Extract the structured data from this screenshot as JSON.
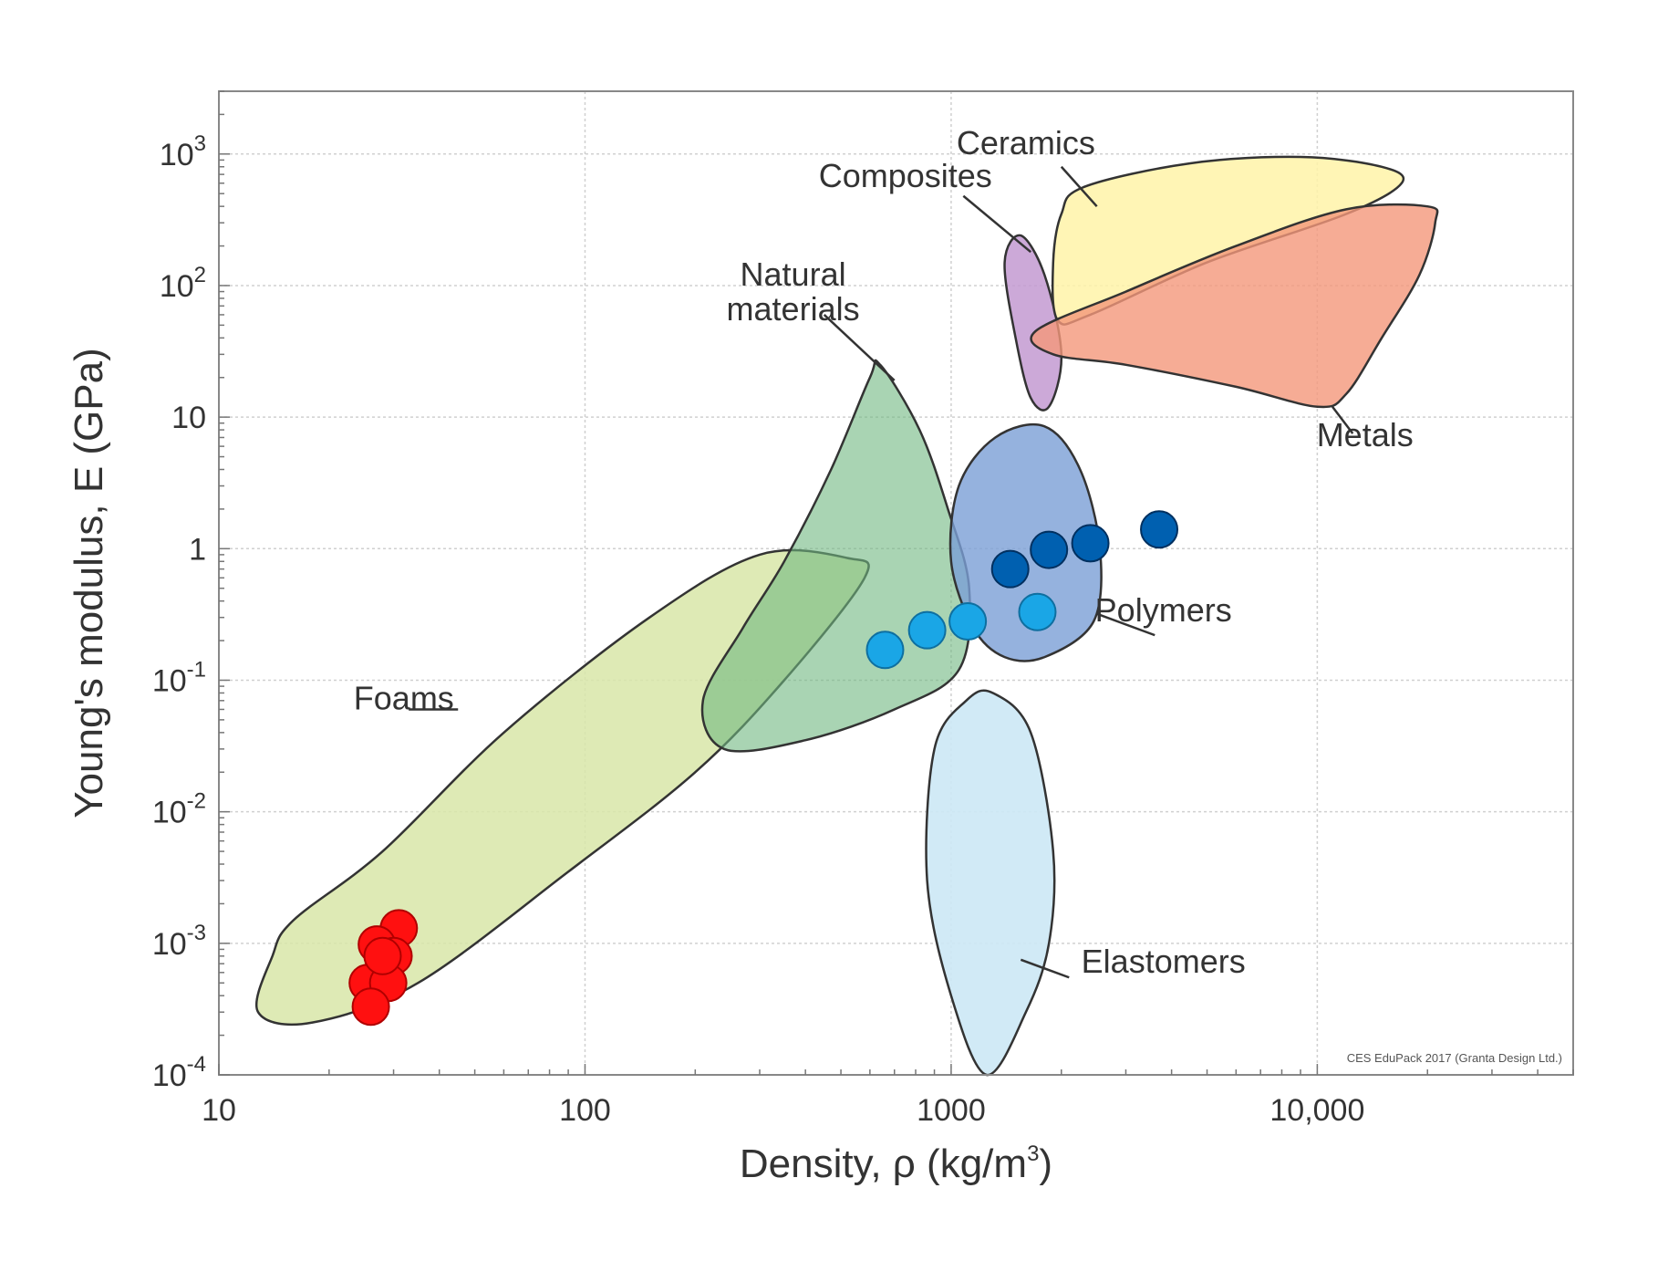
{
  "chart_data": {
    "type": "scatter",
    "title": "",
    "credit": "CES EduPack 2017 (Granta Design Ltd.)",
    "xlabel": {
      "base": "Density, ρ  (kg/m",
      "exp": "3",
      "tail": ")"
    },
    "ylabel": "Young's modulus, E (GPa)",
    "x_scale": "log",
    "y_scale": "log",
    "xlim": [
      10,
      50000
    ],
    "ylim": [
      0.0001,
      3000
    ],
    "grid": true,
    "x_ticks": [
      {
        "value": 10,
        "label": "10"
      },
      {
        "value": 100,
        "label": "100"
      },
      {
        "value": 1000,
        "label": "1000"
      },
      {
        "value": 10000,
        "label": "10,000"
      }
    ],
    "y_ticks": [
      {
        "value": 0.0001,
        "label": "10",
        "exp": "-4"
      },
      {
        "value": 0.001,
        "label": "10",
        "exp": "-3"
      },
      {
        "value": 0.01,
        "label": "10",
        "exp": "-2"
      },
      {
        "value": 0.1,
        "label": "10",
        "exp": "-1"
      },
      {
        "value": 1,
        "label": "1",
        "exp": ""
      },
      {
        "value": 10,
        "label": "10",
        "exp": ""
      },
      {
        "value": 100,
        "label": "10",
        "exp": "2"
      },
      {
        "value": 1000,
        "label": "10",
        "exp": "3"
      }
    ],
    "families": [
      {
        "key": "foams",
        "label": "Foams",
        "fill": "#d8e6a8",
        "opacity": 0.85,
        "outline": [
          [
            14,
            0.0008
          ],
          [
            12.8,
            0.0003
          ],
          [
            18,
            0.00025
          ],
          [
            35,
            0.0005
          ],
          [
            90,
            0.0035
          ],
          [
            200,
            0.02
          ],
          [
            350,
            0.1
          ],
          [
            580,
            0.6
          ],
          [
            520,
            0.85
          ],
          [
            300,
            0.9
          ],
          [
            150,
            0.3
          ],
          [
            60,
            0.04
          ],
          [
            28,
            0.005
          ],
          [
            16,
            0.0015
          ]
        ],
        "label_at": [
          32,
          0.06
        ],
        "leader": [
          [
            33,
            0.06
          ],
          [
            45,
            0.06
          ]
        ]
      },
      {
        "key": "natural",
        "label": "Natural materials",
        "fill": "#6fb880",
        "opacity": 0.6,
        "outline": [
          [
            640,
            25
          ],
          [
            820,
            8
          ],
          [
            980,
            2
          ],
          [
            1120,
            0.5
          ],
          [
            1050,
            0.12
          ],
          [
            700,
            0.06
          ],
          [
            400,
            0.035
          ],
          [
            240,
            0.03
          ],
          [
            210,
            0.07
          ],
          [
            270,
            0.25
          ],
          [
            350,
            0.8
          ],
          [
            470,
            4
          ],
          [
            600,
            20
          ]
        ],
        "label_at": [
          370,
          100
        ],
        "leader": [
          [
            450,
            60
          ],
          [
            700,
            19
          ]
        ]
      },
      {
        "key": "polymers",
        "label": "Polymers",
        "fill": "#7b9fd6",
        "opacity": 0.8,
        "outline": [
          [
            1320,
            7
          ],
          [
            1800,
            8.5
          ],
          [
            2250,
            4
          ],
          [
            2550,
            1
          ],
          [
            2450,
            0.28
          ],
          [
            1800,
            0.15
          ],
          [
            1400,
            0.15
          ],
          [
            1150,
            0.25
          ],
          [
            1000,
            0.8
          ],
          [
            1050,
            3
          ]
        ],
        "label_at": [
          3800,
          0.28
        ],
        "leader": [
          [
            2500,
            0.32
          ],
          [
            3600,
            0.22
          ]
        ]
      },
      {
        "key": "elastomers",
        "label": "Elastomers",
        "fill": "#cce8f5",
        "opacity": 0.9,
        "outline": [
          [
            1300,
            0.08
          ],
          [
            1650,
            0.04
          ],
          [
            1900,
            0.005
          ],
          [
            1850,
            0.001
          ],
          [
            1600,
            0.0003
          ],
          [
            1250,
            0.0001
          ],
          [
            1000,
            0.0004
          ],
          [
            860,
            0.003
          ],
          [
            900,
            0.03
          ],
          [
            1100,
            0.07
          ]
        ],
        "label_at": [
          3800,
          0.0006
        ],
        "leader": [
          [
            1550,
            0.00075
          ],
          [
            2100,
            0.00055
          ]
        ]
      },
      {
        "key": "composites",
        "label": "Composites",
        "fill": "#c39ad1",
        "opacity": 0.85,
        "outline": [
          [
            1550,
            240
          ],
          [
            1800,
            120
          ],
          [
            2000,
            30
          ],
          [
            1850,
            12
          ],
          [
            1650,
            14
          ],
          [
            1500,
            40
          ],
          [
            1400,
            150
          ]
        ],
        "label_at": [
          750,
          560
        ],
        "leader": [
          [
            1080,
            480
          ],
          [
            1650,
            180
          ]
        ]
      },
      {
        "key": "ceramics",
        "label": "Ceramics",
        "fill": "#fff3a8",
        "opacity": 0.85,
        "outline": [
          [
            2300,
            560
          ],
          [
            4500,
            850
          ],
          [
            9000,
            950
          ],
          [
            15000,
            800
          ],
          [
            17000,
            600
          ],
          [
            12000,
            350
          ],
          [
            5000,
            150
          ],
          [
            2400,
            60
          ],
          [
            1950,
            55
          ],
          [
            1900,
            150
          ],
          [
            2000,
            350
          ]
        ],
        "label_at": [
          1600,
          1000
        ],
        "leader": [
          [
            2000,
            800
          ],
          [
            2500,
            400
          ]
        ]
      },
      {
        "key": "metals",
        "label": "Metals",
        "fill": "#f4977a",
        "opacity": 0.8,
        "outline": [
          [
            1700,
            45
          ],
          [
            3000,
            90
          ],
          [
            6000,
            200
          ],
          [
            12000,
            380
          ],
          [
            20000,
            400
          ],
          [
            21000,
            300
          ],
          [
            19000,
            120
          ],
          [
            15000,
            40
          ],
          [
            12000,
            15
          ],
          [
            10000,
            12
          ],
          [
            6000,
            17
          ],
          [
            3000,
            25
          ],
          [
            1900,
            30
          ]
        ],
        "label_at": [
          13500,
          6
        ],
        "leader": [
          [
            11000,
            12
          ],
          [
            12500,
            7.5
          ]
        ]
      }
    ],
    "series": [
      {
        "name": "",
        "color": "#ff1010",
        "stroke": "#b00000",
        "points": [
          [
            31,
            0.0013
          ],
          [
            27,
            0.00098
          ],
          [
            30,
            0.0008
          ],
          [
            25.5,
            0.0005
          ],
          [
            29,
            0.0005
          ],
          [
            26,
            0.00033
          ],
          [
            28,
            0.0008
          ]
        ]
      },
      {
        "name": "",
        "color": "#1aa6e6",
        "stroke": "#0e6fa0",
        "points": [
          [
            660,
            0.17
          ],
          [
            860,
            0.24
          ],
          [
            1110,
            0.28
          ],
          [
            1720,
            0.33
          ]
        ]
      },
      {
        "name": "",
        "color": "#0060b0",
        "stroke": "#003060",
        "points": [
          [
            1450,
            0.7
          ],
          [
            1850,
            0.98
          ],
          [
            2400,
            1.1
          ],
          [
            3700,
            1.4
          ]
        ]
      }
    ]
  }
}
